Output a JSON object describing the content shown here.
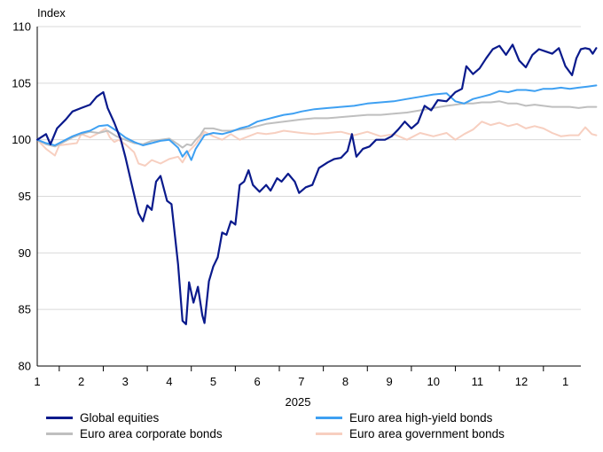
{
  "chart_data": {
    "type": "line",
    "ylabel": "Index",
    "xlabel": "2025",
    "ylim": [
      80,
      110
    ],
    "yticks": [
      80,
      85,
      90,
      95,
      100,
      105,
      110
    ],
    "x_unit": "months since start of 2025",
    "xlim": [
      0,
      12.35
    ],
    "month_ticks": [
      "1",
      "2",
      "3",
      "4",
      "5",
      "6",
      "7",
      "8",
      "9",
      "10",
      "11",
      "12",
      "1"
    ],
    "grid": true,
    "legend_position": "bottom",
    "series": [
      {
        "name": "Global equities",
        "color": "#0a1a8c",
        "points": [
          [
            0.0,
            100.0
          ],
          [
            0.2,
            100.5
          ],
          [
            0.3,
            99.6
          ],
          [
            0.45,
            101.0
          ],
          [
            0.65,
            101.8
          ],
          [
            0.8,
            102.5
          ],
          [
            1.0,
            102.8
          ],
          [
            1.2,
            103.1
          ],
          [
            1.35,
            103.8
          ],
          [
            1.5,
            104.2
          ],
          [
            1.6,
            102.8
          ],
          [
            1.75,
            101.5
          ],
          [
            1.9,
            100.0
          ],
          [
            2.0,
            98.5
          ],
          [
            2.15,
            96.0
          ],
          [
            2.3,
            93.5
          ],
          [
            2.4,
            92.8
          ],
          [
            2.5,
            94.2
          ],
          [
            2.6,
            93.8
          ],
          [
            2.7,
            96.3
          ],
          [
            2.8,
            96.8
          ],
          [
            2.95,
            94.6
          ],
          [
            3.05,
            94.3
          ],
          [
            3.2,
            89.0
          ],
          [
            3.3,
            84.0
          ],
          [
            3.38,
            83.7
          ],
          [
            3.45,
            87.4
          ],
          [
            3.55,
            85.6
          ],
          [
            3.65,
            87.0
          ],
          [
            3.75,
            84.5
          ],
          [
            3.8,
            83.8
          ],
          [
            3.9,
            87.5
          ],
          [
            4.0,
            88.8
          ],
          [
            4.1,
            89.6
          ],
          [
            4.2,
            91.8
          ],
          [
            4.3,
            91.6
          ],
          [
            4.4,
            92.8
          ],
          [
            4.5,
            92.5
          ],
          [
            4.6,
            96.0
          ],
          [
            4.7,
            96.3
          ],
          [
            4.8,
            97.3
          ],
          [
            4.9,
            96.0
          ],
          [
            5.05,
            95.4
          ],
          [
            5.2,
            96.0
          ],
          [
            5.3,
            95.5
          ],
          [
            5.45,
            96.6
          ],
          [
            5.55,
            96.3
          ],
          [
            5.7,
            97.0
          ],
          [
            5.85,
            96.3
          ],
          [
            5.95,
            95.3
          ],
          [
            6.1,
            95.8
          ],
          [
            6.25,
            96.0
          ],
          [
            6.4,
            97.5
          ],
          [
            6.6,
            98.0
          ],
          [
            6.75,
            98.3
          ],
          [
            6.9,
            98.4
          ],
          [
            7.05,
            99.0
          ],
          [
            7.15,
            100.5
          ],
          [
            7.25,
            98.5
          ],
          [
            7.4,
            99.2
          ],
          [
            7.55,
            99.4
          ],
          [
            7.7,
            100.0
          ],
          [
            7.9,
            100.0
          ],
          [
            8.05,
            100.3
          ],
          [
            8.2,
            100.9
          ],
          [
            8.35,
            101.6
          ],
          [
            8.5,
            101.0
          ],
          [
            8.65,
            101.5
          ],
          [
            8.8,
            103.0
          ],
          [
            8.95,
            102.6
          ],
          [
            9.1,
            103.5
          ],
          [
            9.3,
            103.4
          ],
          [
            9.5,
            104.2
          ],
          [
            9.65,
            104.5
          ],
          [
            9.75,
            106.5
          ],
          [
            9.9,
            105.8
          ],
          [
            10.05,
            106.3
          ],
          [
            10.2,
            107.2
          ],
          [
            10.35,
            108.0
          ],
          [
            10.5,
            108.3
          ],
          [
            10.65,
            107.5
          ],
          [
            10.8,
            108.4
          ],
          [
            10.95,
            107.0
          ],
          [
            11.1,
            106.4
          ],
          [
            11.25,
            107.5
          ],
          [
            11.4,
            108.0
          ],
          [
            11.55,
            107.8
          ],
          [
            11.7,
            107.6
          ],
          [
            11.85,
            108.1
          ],
          [
            12.0,
            106.5
          ],
          [
            12.15,
            105.7
          ],
          [
            12.25,
            107.2
          ],
          [
            12.35,
            108.0
          ],
          [
            12.45,
            108.1
          ],
          [
            12.55,
            108.0
          ],
          [
            12.62,
            107.6
          ],
          [
            12.7,
            108.1
          ]
        ]
      },
      {
        "name": "Euro area high-yield bonds",
        "color": "#3ea0f2",
        "points": [
          [
            0.0,
            100.0
          ],
          [
            0.2,
            99.7
          ],
          [
            0.4,
            99.5
          ],
          [
            0.6,
            99.9
          ],
          [
            0.8,
            100.3
          ],
          [
            1.0,
            100.6
          ],
          [
            1.2,
            100.8
          ],
          [
            1.4,
            101.2
          ],
          [
            1.6,
            101.3
          ],
          [
            1.8,
            100.8
          ],
          [
            2.0,
            100.2
          ],
          [
            2.2,
            99.8
          ],
          [
            2.4,
            99.5
          ],
          [
            2.6,
            99.7
          ],
          [
            2.8,
            99.9
          ],
          [
            3.0,
            100.0
          ],
          [
            3.2,
            99.3
          ],
          [
            3.3,
            98.5
          ],
          [
            3.4,
            99.0
          ],
          [
            3.5,
            98.2
          ],
          [
            3.6,
            99.2
          ],
          [
            3.7,
            99.8
          ],
          [
            3.8,
            100.4
          ],
          [
            4.0,
            100.6
          ],
          [
            4.2,
            100.5
          ],
          [
            4.4,
            100.7
          ],
          [
            4.6,
            101.0
          ],
          [
            4.8,
            101.2
          ],
          [
            5.0,
            101.6
          ],
          [
            5.2,
            101.8
          ],
          [
            5.4,
            102.0
          ],
          [
            5.6,
            102.2
          ],
          [
            5.8,
            102.3
          ],
          [
            6.0,
            102.5
          ],
          [
            6.3,
            102.7
          ],
          [
            6.6,
            102.8
          ],
          [
            6.9,
            102.9
          ],
          [
            7.2,
            103.0
          ],
          [
            7.5,
            103.2
          ],
          [
            7.8,
            103.3
          ],
          [
            8.1,
            103.4
          ],
          [
            8.4,
            103.6
          ],
          [
            8.7,
            103.8
          ],
          [
            9.0,
            104.0
          ],
          [
            9.3,
            104.1
          ],
          [
            9.5,
            103.4
          ],
          [
            9.7,
            103.2
          ],
          [
            9.9,
            103.6
          ],
          [
            10.1,
            103.8
          ],
          [
            10.3,
            104.0
          ],
          [
            10.5,
            104.3
          ],
          [
            10.7,
            104.2
          ],
          [
            10.9,
            104.4
          ],
          [
            11.1,
            104.4
          ],
          [
            11.3,
            104.3
          ],
          [
            11.5,
            104.5
          ],
          [
            11.7,
            104.5
          ],
          [
            11.9,
            104.6
          ],
          [
            12.1,
            104.5
          ],
          [
            12.3,
            104.6
          ],
          [
            12.5,
            104.7
          ],
          [
            12.7,
            104.8
          ]
        ]
      },
      {
        "name": "Euro area corporate bonds",
        "color": "#bfbfbf",
        "points": [
          [
            0.0,
            100.0
          ],
          [
            0.2,
            99.6
          ],
          [
            0.4,
            99.4
          ],
          [
            0.6,
            99.8
          ],
          [
            0.8,
            100.2
          ],
          [
            1.0,
            100.5
          ],
          [
            1.2,
            100.7
          ],
          [
            1.4,
            100.6
          ],
          [
            1.6,
            100.8
          ],
          [
            1.8,
            100.3
          ],
          [
            2.0,
            100.0
          ],
          [
            2.2,
            99.7
          ],
          [
            2.4,
            99.6
          ],
          [
            2.6,
            99.9
          ],
          [
            2.8,
            100.0
          ],
          [
            3.0,
            100.1
          ],
          [
            3.2,
            99.6
          ],
          [
            3.3,
            99.3
          ],
          [
            3.4,
            99.6
          ],
          [
            3.5,
            99.5
          ],
          [
            3.6,
            100.0
          ],
          [
            3.7,
            100.4
          ],
          [
            3.8,
            101.0
          ],
          [
            4.0,
            101.0
          ],
          [
            4.2,
            100.8
          ],
          [
            4.4,
            100.8
          ],
          [
            4.6,
            100.9
          ],
          [
            4.8,
            101.0
          ],
          [
            5.0,
            101.2
          ],
          [
            5.2,
            101.4
          ],
          [
            5.4,
            101.5
          ],
          [
            5.6,
            101.6
          ],
          [
            5.8,
            101.7
          ],
          [
            6.0,
            101.8
          ],
          [
            6.3,
            101.9
          ],
          [
            6.6,
            101.9
          ],
          [
            6.9,
            102.0
          ],
          [
            7.2,
            102.1
          ],
          [
            7.5,
            102.2
          ],
          [
            7.8,
            102.2
          ],
          [
            8.1,
            102.3
          ],
          [
            8.4,
            102.4
          ],
          [
            8.7,
            102.6
          ],
          [
            9.0,
            102.8
          ],
          [
            9.3,
            103.0
          ],
          [
            9.5,
            103.1
          ],
          [
            9.7,
            103.2
          ],
          [
            9.9,
            103.2
          ],
          [
            10.1,
            103.3
          ],
          [
            10.3,
            103.3
          ],
          [
            10.5,
            103.4
          ],
          [
            10.7,
            103.2
          ],
          [
            10.9,
            103.2
          ],
          [
            11.1,
            103.0
          ],
          [
            11.3,
            103.1
          ],
          [
            11.5,
            103.0
          ],
          [
            11.7,
            102.9
          ],
          [
            11.9,
            102.9
          ],
          [
            12.1,
            102.9
          ],
          [
            12.3,
            102.8
          ],
          [
            12.5,
            102.9
          ],
          [
            12.7,
            102.9
          ]
        ]
      },
      {
        "name": "Euro area government bonds",
        "color": "#f7cfc0",
        "points": [
          [
            0.0,
            100.0
          ],
          [
            0.2,
            99.2
          ],
          [
            0.4,
            98.6
          ],
          [
            0.5,
            99.5
          ],
          [
            0.7,
            99.6
          ],
          [
            0.9,
            99.7
          ],
          [
            1.0,
            100.5
          ],
          [
            1.2,
            100.2
          ],
          [
            1.4,
            100.6
          ],
          [
            1.55,
            101.0
          ],
          [
            1.65,
            100.2
          ],
          [
            1.75,
            99.8
          ],
          [
            1.85,
            100.0
          ],
          [
            2.0,
            99.6
          ],
          [
            2.2,
            98.9
          ],
          [
            2.3,
            97.9
          ],
          [
            2.45,
            97.7
          ],
          [
            2.6,
            98.2
          ],
          [
            2.8,
            97.9
          ],
          [
            3.0,
            98.3
          ],
          [
            3.2,
            98.5
          ],
          [
            3.3,
            98.0
          ],
          [
            3.45,
            99.0
          ],
          [
            3.6,
            99.6
          ],
          [
            3.8,
            100.7
          ],
          [
            4.0,
            100.3
          ],
          [
            4.2,
            100.0
          ],
          [
            4.4,
            100.5
          ],
          [
            4.6,
            100.0
          ],
          [
            4.8,
            100.3
          ],
          [
            5.0,
            100.6
          ],
          [
            5.2,
            100.5
          ],
          [
            5.4,
            100.6
          ],
          [
            5.6,
            100.8
          ],
          [
            5.8,
            100.7
          ],
          [
            6.0,
            100.6
          ],
          [
            6.3,
            100.5
          ],
          [
            6.6,
            100.6
          ],
          [
            6.9,
            100.7
          ],
          [
            7.2,
            100.4
          ],
          [
            7.5,
            100.7
          ],
          [
            7.8,
            100.3
          ],
          [
            8.1,
            100.5
          ],
          [
            8.4,
            100.0
          ],
          [
            8.7,
            100.6
          ],
          [
            9.0,
            100.3
          ],
          [
            9.3,
            100.6
          ],
          [
            9.5,
            100.0
          ],
          [
            9.7,
            100.5
          ],
          [
            9.9,
            100.9
          ],
          [
            10.1,
            101.6
          ],
          [
            10.3,
            101.3
          ],
          [
            10.5,
            101.5
          ],
          [
            10.7,
            101.2
          ],
          [
            10.9,
            101.4
          ],
          [
            11.1,
            101.0
          ],
          [
            11.3,
            101.2
          ],
          [
            11.5,
            101.0
          ],
          [
            11.7,
            100.6
          ],
          [
            11.9,
            100.3
          ],
          [
            12.1,
            100.4
          ],
          [
            12.3,
            100.4
          ],
          [
            12.45,
            101.1
          ],
          [
            12.6,
            100.5
          ],
          [
            12.7,
            100.4
          ]
        ]
      }
    ]
  }
}
